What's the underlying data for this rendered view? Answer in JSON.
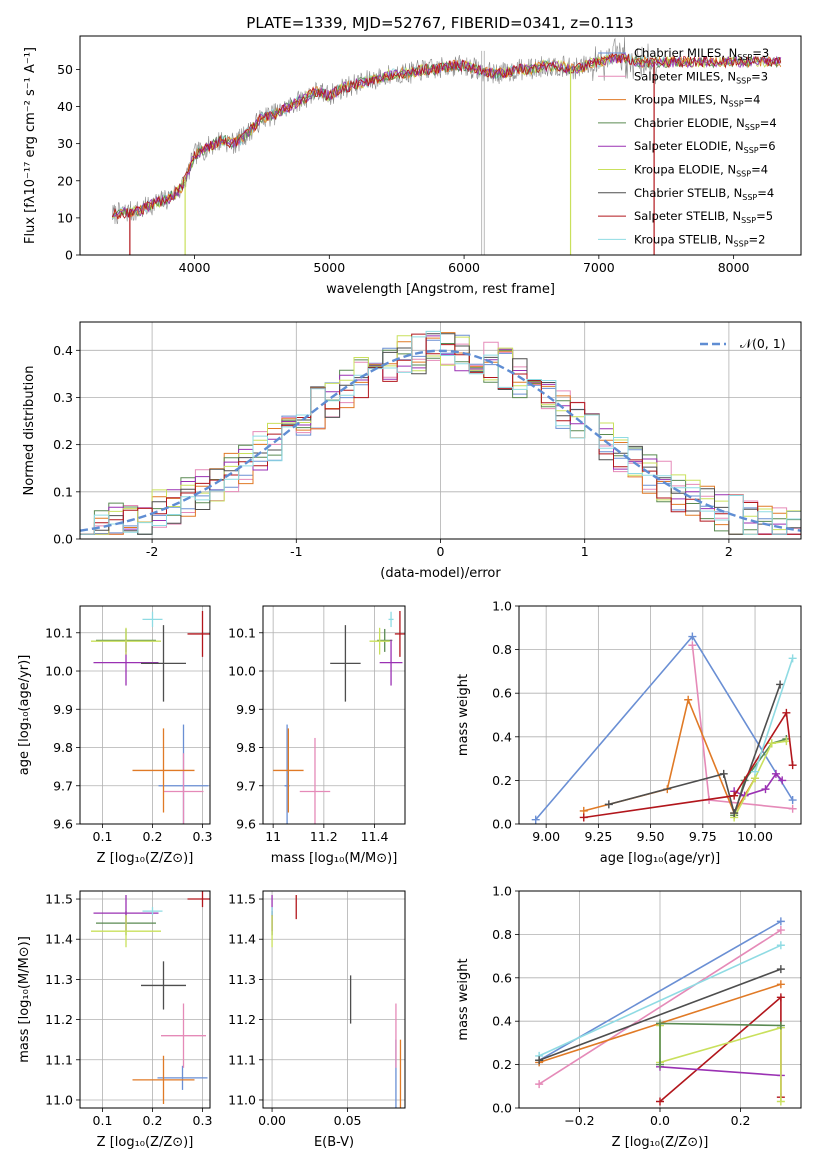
{
  "figure": {
    "title": "PLATE=1339, MJD=52767, FIBERID=0341, z=0.113"
  },
  "colors": {
    "chabrier_miles": "#6a8fd4",
    "salpeter_miles": "#e58ab8",
    "kroupa_miles": "#e07a26",
    "chabrier_elodie": "#5a8a52",
    "salpeter_elodie": "#9a31b3",
    "kroupa_elodie": "#c9e05c",
    "chabrier_stelib": "#4e4e4e",
    "salpeter_stelib": "#b2161c",
    "kroupa_stelib": "#8fdbe3",
    "gauss": "#5f8dd3",
    "grid": "#b0b0b0"
  },
  "chart_data": [
    {
      "id": "spectrum",
      "type": "line",
      "xlabel": "wavelength [Angstrom, rest frame]",
      "ylabel": "Flux [fλ10⁻¹⁷ erg cm⁻² s⁻¹ A⁻¹]",
      "xlim": [
        3150,
        8500
      ],
      "ylim": [
        0,
        59
      ],
      "xticks": [
        4000,
        5000,
        6000,
        7000,
        8000
      ],
      "yticks": [
        0,
        10,
        20,
        30,
        40,
        50
      ],
      "grid": false,
      "legend_position": "top-right",
      "legend": [
        {
          "label": "Chabrier MILES, N",
          "sub": "SSP",
          "suffix": "=3",
          "color_key": "chabrier_miles"
        },
        {
          "label": "Salpeter MILES, N",
          "sub": "SSP",
          "suffix": "=3",
          "color_key": "salpeter_miles"
        },
        {
          "label": "Kroupa MILES, N",
          "sub": "SSP",
          "suffix": "=4",
          "color_key": "kroupa_miles"
        },
        {
          "label": "Chabrier ELODIE, N",
          "sub": "SSP",
          "suffix": "=4",
          "color_key": "chabrier_elodie"
        },
        {
          "label": "Salpeter ELODIE, N",
          "sub": "SSP",
          "suffix": "=6",
          "color_key": "salpeter_elodie"
        },
        {
          "label": "Kroupa ELODIE, N",
          "sub": "SSP",
          "suffix": "=4",
          "color_key": "kroupa_elodie"
        },
        {
          "label": "Chabrier STELIB, N",
          "sub": "SSP",
          "suffix": "=4",
          "color_key": "chabrier_stelib"
        },
        {
          "label": "Salpeter STELIB, N",
          "sub": "SSP",
          "suffix": "=5",
          "color_key": "salpeter_stelib"
        },
        {
          "label": "Kroupa STELIB, N",
          "sub": "SSP",
          "suffix": "=2",
          "color_key": "kroupa_stelib"
        }
      ],
      "continuum": {
        "x": [
          3400,
          3600,
          3700,
          3800,
          3900,
          3950,
          4000,
          4100,
          4200,
          4300,
          4400,
          4500,
          4600,
          4700,
          4800,
          4900,
          5000,
          5100,
          5200,
          5300,
          5400,
          5500,
          5600,
          5700,
          5800,
          5900,
          6000,
          6100,
          6200,
          6300,
          6400,
          6500,
          6600,
          6700,
          6800,
          6900,
          7000,
          7100,
          7200,
          7300,
          7400
        ],
        "y": [
          11,
          12,
          14,
          15,
          18,
          22,
          27,
          29,
          31,
          30,
          33,
          37,
          38,
          40,
          42,
          44,
          43,
          45,
          46,
          47,
          48,
          49,
          49,
          50,
          50,
          51,
          51,
          50,
          49,
          49,
          50,
          50,
          51,
          51,
          50,
          51,
          52,
          53,
          53,
          52,
          52
        ]
      },
      "data_range": [
        3390,
        7450
      ],
      "model_range": [
        3390,
        8350
      ],
      "vertical_spikes": [
        6130,
        6150
      ]
    },
    {
      "id": "residuals",
      "type": "line",
      "xlabel": "(data-model)/error",
      "ylabel": "Normed distribution",
      "xlim": [
        -2.5,
        2.5
      ],
      "ylim": [
        0,
        0.46
      ],
      "xticks": [
        -2,
        -1,
        0,
        1,
        2
      ],
      "yticks": [
        0.0,
        0.1,
        0.2,
        0.3,
        0.4
      ],
      "grid": true,
      "legend_position": "top-right",
      "gauss_label": "𝒩(0, 1)",
      "series_color_keys": [
        "chabrier_miles",
        "salpeter_miles",
        "kroupa_miles",
        "chabrier_elodie",
        "salpeter_elodie",
        "kroupa_elodie",
        "chabrier_stelib",
        "salpeter_stelib",
        "kroupa_stelib"
      ]
    },
    {
      "id": "age_vs_z",
      "type": "scatter",
      "xlabel": "Z [log₁₀(Z/Z⊙)]",
      "ylabel": "age  [log₁₀(age/yr)]",
      "xlim": [
        0.055,
        0.315
      ],
      "ylim": [
        9.6,
        10.17
      ],
      "xticks": [
        0.1,
        0.2,
        0.3
      ],
      "yticks": [
        9.6,
        9.7,
        9.8,
        9.9,
        10.0,
        10.1
      ],
      "grid": true,
      "points": [
        {
          "color_key": "chabrier_miles",
          "x": 0.262,
          "y": 9.7,
          "xerr": 0.05,
          "yerr": 0.16
        },
        {
          "color_key": "salpeter_miles",
          "x": 0.262,
          "y": 9.685,
          "xerr": 0.04,
          "yerr": 0.1
        },
        {
          "color_key": "kroupa_miles",
          "x": 0.222,
          "y": 9.74,
          "xerr": 0.062,
          "yerr": 0.11
        },
        {
          "color_key": "chabrier_elodie",
          "x": 0.147,
          "y": 10.08,
          "xerr": 0.06,
          "yerr": 0.03
        },
        {
          "color_key": "salpeter_elodie",
          "x": 0.147,
          "y": 10.022,
          "xerr": 0.065,
          "yerr": 0.06
        },
        {
          "color_key": "kroupa_elodie",
          "x": 0.147,
          "y": 10.078,
          "xerr": 0.07,
          "yerr": 0.035
        },
        {
          "color_key": "chabrier_stelib",
          "x": 0.222,
          "y": 10.02,
          "xerr": 0.045,
          "yerr": 0.1
        },
        {
          "color_key": "salpeter_stelib",
          "x": 0.3,
          "y": 10.097,
          "xerr": 0.03,
          "yerr": 0.06
        },
        {
          "color_key": "kroupa_stelib",
          "x": 0.2,
          "y": 10.135,
          "xerr": 0.02,
          "yerr": 0.02
        }
      ]
    },
    {
      "id": "age_vs_mass",
      "type": "scatter",
      "xlabel": "mass [log₁₀(M/M⊙)]",
      "ylabel": "",
      "xlim": [
        10.96,
        11.52
      ],
      "ylim": [
        9.6,
        10.17
      ],
      "xticks": [
        11.0,
        11.2,
        11.4
      ],
      "yticks": [
        9.6,
        9.7,
        9.8,
        9.9,
        10.0,
        10.1
      ],
      "grid": true,
      "points": [
        {
          "color_key": "chabrier_miles",
          "x": 11.055,
          "y": 9.7,
          "xerr": 0.01,
          "yerr": 0.16
        },
        {
          "color_key": "salpeter_miles",
          "x": 11.165,
          "y": 9.685,
          "xerr": 0.06,
          "yerr": 0.14
        },
        {
          "color_key": "kroupa_miles",
          "x": 11.06,
          "y": 9.74,
          "xerr": 0.06,
          "yerr": 0.11
        },
        {
          "color_key": "chabrier_elodie",
          "x": 11.44,
          "y": 10.08,
          "xerr": 0.03,
          "yerr": 0.03
        },
        {
          "color_key": "salpeter_elodie",
          "x": 11.465,
          "y": 10.022,
          "xerr": 0.045,
          "yerr": 0.06
        },
        {
          "color_key": "kroupa_elodie",
          "x": 11.42,
          "y": 10.078,
          "xerr": 0.04,
          "yerr": 0.035
        },
        {
          "color_key": "chabrier_stelib",
          "x": 11.285,
          "y": 10.02,
          "xerr": 0.06,
          "yerr": 0.1
        },
        {
          "color_key": "salpeter_stelib",
          "x": 11.5,
          "y": 10.097,
          "xerr": 0.02,
          "yerr": 0.06
        },
        {
          "color_key": "kroupa_stelib",
          "x": 11.465,
          "y": 10.135,
          "xerr": 0.01,
          "yerr": 0.02
        }
      ]
    },
    {
      "id": "weight_vs_age",
      "type": "line",
      "xlabel": "age  [log₁₀(age/yr)]",
      "ylabel": "mass weight",
      "xlim": [
        8.87,
        10.22
      ],
      "ylim": [
        0,
        1
      ],
      "xticks": [
        9.0,
        9.25,
        9.5,
        9.75,
        10.0
      ],
      "ytick_labels": [
        "0.0",
        "0.2",
        "0.4",
        "0.6",
        "0.8",
        "1.0"
      ],
      "xtick_labels": [
        "9.00",
        "9.25",
        "9.50",
        "9.75",
        "10.00"
      ],
      "grid": true,
      "series": [
        {
          "color_key": "chabrier_miles",
          "x": [
            8.95,
            9.7,
            10.18
          ],
          "y": [
            0.02,
            0.86,
            0.11
          ]
        },
        {
          "color_key": "salpeter_miles",
          "x": [
            9.7,
            9.78,
            10.18
          ],
          "y": [
            0.82,
            0.11,
            0.07
          ]
        },
        {
          "color_key": "kroupa_miles",
          "x": [
            9.18,
            9.58,
            9.68,
            9.9,
            10.0
          ],
          "y": [
            0.06,
            0.16,
            0.57,
            0.05,
            0.21
          ]
        },
        {
          "color_key": "chabrier_elodie",
          "x": [
            9.9,
            9.95,
            10.08,
            10.15
          ],
          "y": [
            0.04,
            0.2,
            0.37,
            0.39
          ]
        },
        {
          "color_key": "salpeter_elodie",
          "x": [
            9.9,
            9.95,
            10.05,
            10.1,
            10.13
          ],
          "y": [
            0.15,
            0.13,
            0.16,
            0.23,
            0.2
          ]
        },
        {
          "color_key": "kroupa_elodie",
          "x": [
            9.9,
            10.0,
            10.08,
            10.15
          ],
          "y": [
            0.03,
            0.21,
            0.37,
            0.38
          ]
        },
        {
          "color_key": "chabrier_stelib",
          "x": [
            9.3,
            9.85,
            9.9,
            10.12
          ],
          "y": [
            0.09,
            0.23,
            0.05,
            0.64
          ]
        },
        {
          "color_key": "salpeter_stelib",
          "x": [
            9.18,
            9.9,
            10.15,
            10.18
          ],
          "y": [
            0.03,
            0.13,
            0.51,
            0.27
          ]
        },
        {
          "color_key": "kroupa_stelib",
          "x": [
            10.0,
            10.18
          ],
          "y": [
            0.24,
            0.76
          ]
        }
      ]
    },
    {
      "id": "mass_vs_z",
      "type": "scatter",
      "xlabel": "Z [log₁₀(Z/Z⊙)]",
      "ylabel": "mass [log₁₀(M/M⊙)]",
      "xlim": [
        0.055,
        0.315
      ],
      "ylim": [
        10.98,
        11.52
      ],
      "xticks": [
        0.1,
        0.2,
        0.3
      ],
      "yticks": [
        11.0,
        11.1,
        11.2,
        11.3,
        11.4,
        11.5
      ],
      "grid": true,
      "points": [
        {
          "color_key": "chabrier_miles",
          "x": 0.26,
          "y": 11.055,
          "xerr": 0.05,
          "yerr": 0.03
        },
        {
          "color_key": "salpeter_miles",
          "x": 0.262,
          "y": 11.16,
          "xerr": 0.045,
          "yerr": 0.08
        },
        {
          "color_key": "kroupa_miles",
          "x": 0.222,
          "y": 11.05,
          "xerr": 0.062,
          "yerr": 0.06
        },
        {
          "color_key": "chabrier_elodie",
          "x": 0.147,
          "y": 11.44,
          "xerr": 0.06,
          "yerr": 0.03
        },
        {
          "color_key": "salpeter_elodie",
          "x": 0.147,
          "y": 11.465,
          "xerr": 0.065,
          "yerr": 0.045
        },
        {
          "color_key": "kroupa_elodie",
          "x": 0.147,
          "y": 11.42,
          "xerr": 0.07,
          "yerr": 0.04
        },
        {
          "color_key": "chabrier_stelib",
          "x": 0.222,
          "y": 11.285,
          "xerr": 0.045,
          "yerr": 0.06
        },
        {
          "color_key": "salpeter_stelib",
          "x": 0.3,
          "y": 11.5,
          "xerr": 0.03,
          "yerr": 0.02
        },
        {
          "color_key": "kroupa_stelib",
          "x": 0.2,
          "y": 11.47,
          "xerr": 0.02,
          "yerr": 0.01
        }
      ]
    },
    {
      "id": "mass_vs_ebv",
      "type": "scatter",
      "xlabel": "E(B-V)",
      "ylabel": "",
      "xlim": [
        -0.006,
        0.088
      ],
      "ylim": [
        10.98,
        11.52
      ],
      "xticks": [
        0.0,
        0.05
      ],
      "xtick_labels": [
        "0.00",
        "0.05"
      ],
      "yticks": [
        11.0,
        11.1,
        11.2,
        11.3,
        11.4,
        11.5
      ],
      "grid": true,
      "points": [
        {
          "color_key": "chabrier_miles",
          "x": 0.082,
          "y": 11.05,
          "xerr": 0,
          "yerr": 0.1
        },
        {
          "color_key": "salpeter_miles",
          "x": 0.082,
          "y": 11.16,
          "xerr": 0,
          "yerr": 0.08
        },
        {
          "color_key": "kroupa_miles",
          "x": 0.085,
          "y": 11.05,
          "xerr": 0,
          "yerr": 0.1
        },
        {
          "color_key": "chabrier_elodie",
          "x": 0.0,
          "y": 11.44,
          "xerr": 0,
          "yerr": 0.03
        },
        {
          "color_key": "salpeter_elodie",
          "x": 0.0,
          "y": 11.465,
          "xerr": 0,
          "yerr": 0.045
        },
        {
          "color_key": "kroupa_elodie",
          "x": 0.0,
          "y": 11.42,
          "xerr": 0,
          "yerr": 0.04
        },
        {
          "color_key": "chabrier_stelib",
          "x": 0.052,
          "y": 11.25,
          "xerr": 0,
          "yerr": 0.06
        },
        {
          "color_key": "salpeter_stelib",
          "x": 0.016,
          "y": 11.48,
          "xerr": 0,
          "yerr": 0.03
        },
        {
          "color_key": "kroupa_stelib",
          "x": 0.0,
          "y": 11.47,
          "xerr": 0,
          "yerr": 0.01
        }
      ]
    },
    {
      "id": "weight_vs_z",
      "type": "line",
      "xlabel": "Z [log₁₀(Z/Z⊙)]",
      "ylabel": "mass weight",
      "xlim": [
        -0.35,
        0.35
      ],
      "ylim": [
        0,
        1
      ],
      "xticks": [
        -0.2,
        0.0,
        0.2
      ],
      "xtick_labels": [
        "−0.2",
        "0.0",
        "0.2"
      ],
      "ytick_labels": [
        "0.0",
        "0.2",
        "0.4",
        "0.6",
        "0.8",
        "1.0"
      ],
      "grid": true,
      "series": [
        {
          "color_key": "chabrier_miles",
          "x": [
            -0.3,
            0.3
          ],
          "y": [
            0.22,
            0.86
          ]
        },
        {
          "color_key": "salpeter_miles",
          "x": [
            -0.3,
            0.3
          ],
          "y": [
            0.11,
            0.82
          ]
        },
        {
          "color_key": "kroupa_miles",
          "x": [
            -0.3,
            0.3
          ],
          "y": [
            0.21,
            0.57
          ]
        },
        {
          "color_key": "kroupa_stelib",
          "x": [
            -0.3,
            0.3
          ],
          "y": [
            0.24,
            0.75
          ]
        },
        {
          "color_key": "chabrier_stelib",
          "x": [
            -0.3,
            0.3
          ],
          "y": [
            0.22,
            0.64
          ]
        },
        {
          "color_key": "salpeter_stelib",
          "x": [
            0.0,
            0.3,
            0.3
          ],
          "y": [
            0.03,
            0.51,
            0.05
          ]
        },
        {
          "color_key": "salpeter_elodie",
          "x": [
            0.0,
            0.3
          ],
          "y": [
            0.19,
            0.15
          ]
        },
        {
          "color_key": "kroupa_elodie",
          "x": [
            0.0,
            0.0,
            0.3,
            0.3
          ],
          "y": [
            0.38,
            0.21,
            0.37,
            0.03
          ]
        },
        {
          "color_key": "chabrier_elodie",
          "x": [
            0.0,
            0.0,
            0.3
          ],
          "y": [
            0.2,
            0.39,
            0.38
          ]
        }
      ]
    }
  ]
}
